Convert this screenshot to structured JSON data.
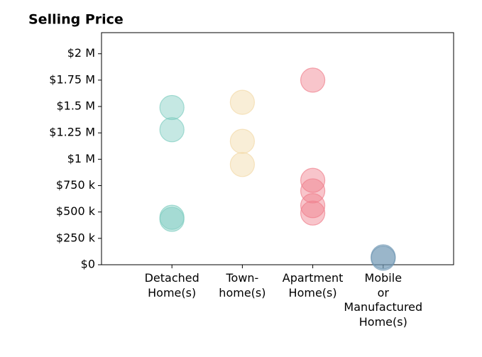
{
  "chart_data": {
    "type": "strip",
    "title": "Selling Price",
    "categories": [
      "Detached\nHome(s)",
      "Town-\nhome(s)",
      "Apartment\nHome(s)",
      "Mobile\nor\nManufactured\nHome(s)"
    ],
    "colors": [
      "#7fcdc0",
      "#f2d9a6",
      "#f07f8c",
      "#6f97b3"
    ],
    "values": [
      [
        1490000,
        1280000,
        450000,
        430000
      ],
      [
        1540000,
        1170000,
        950000
      ],
      [
        1750000,
        800000,
        700000,
        560000,
        490000
      ],
      [
        75000,
        62000
      ]
    ],
    "ylim": [
      0,
      2200000
    ],
    "yticks": [
      {
        "value": 0,
        "label": "$0"
      },
      {
        "value": 250000,
        "label": "$250 k"
      },
      {
        "value": 500000,
        "label": "$500 k"
      },
      {
        "value": 750000,
        "label": "$750 k"
      },
      {
        "value": 1000000,
        "label": "$1 M"
      },
      {
        "value": 1250000,
        "label": "$1.25 M"
      },
      {
        "value": 1500000,
        "label": "$1.5 M"
      },
      {
        "value": 1750000,
        "label": "$1.75 M"
      },
      {
        "value": 2000000,
        "label": "$2 M"
      }
    ]
  }
}
